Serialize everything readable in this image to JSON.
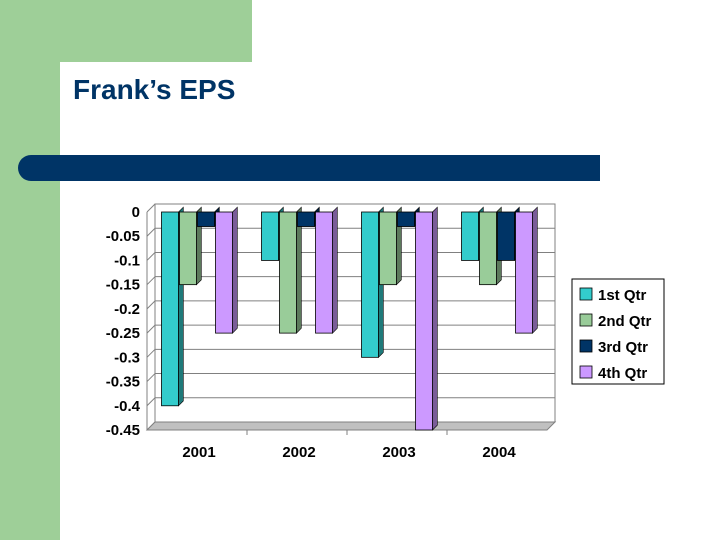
{
  "slide": {
    "title": "Frank’s EPS"
  },
  "colors": {
    "background_green": "#9ecf98",
    "title_color": "#003466",
    "title_bar": "#003466"
  },
  "chart_data": {
    "type": "bar",
    "title": "",
    "xlabel": "",
    "ylabel": "",
    "categories": [
      "2001",
      "2002",
      "2003",
      "2004"
    ],
    "ylim": [
      -0.45,
      0
    ],
    "yticks": [
      "0",
      "-0.05",
      "-0.1",
      "-0.15",
      "-0.2",
      "-0.25",
      "-0.3",
      "-0.35",
      "-0.4",
      "-0.45"
    ],
    "grid": true,
    "legend_position": "right",
    "series": [
      {
        "name": "1st Qtr",
        "color": "#33cccc",
        "values": [
          -0.4,
          -0.1,
          -0.3,
          -0.1
        ]
      },
      {
        "name": "2nd Qtr",
        "color": "#99cc99",
        "values": [
          -0.15,
          -0.25,
          -0.15,
          -0.15
        ]
      },
      {
        "name": "3rd Qtr",
        "color": "#003466",
        "values": [
          -0.03,
          -0.03,
          -0.03,
          -0.1
        ]
      },
      {
        "name": "4th Qtr",
        "color": "#cc99ff",
        "values": [
          -0.25,
          -0.25,
          -0.45,
          -0.25
        ]
      }
    ]
  }
}
